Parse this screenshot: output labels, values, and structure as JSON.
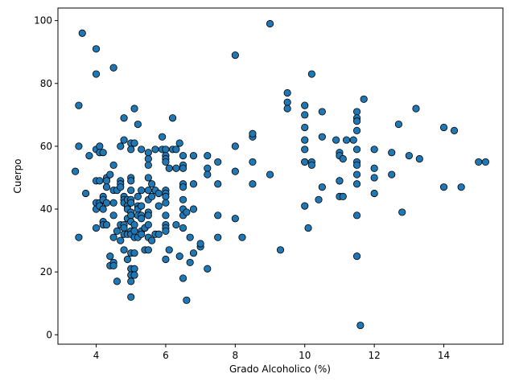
{
  "chart_data": {
    "type": "scatter",
    "title": "",
    "xlabel": "Grado Alcoholico (%)",
    "ylabel": "Cuerpo",
    "xlim": [
      2.9,
      15.7
    ],
    "ylim": [
      -3,
      104
    ],
    "xticks": [
      4,
      6,
      8,
      10,
      12,
      14
    ],
    "yticks": [
      0,
      20,
      40,
      60,
      80,
      100
    ],
    "grid": false,
    "legend": "none",
    "point_color": "#1f77b4",
    "edge_color": "#000000",
    "series": [
      {
        "x": [
          3.4,
          3.5,
          3.5,
          3.5,
          3.6,
          3.7,
          3.8,
          4.0,
          4.0,
          4.0,
          4.0,
          4.0,
          4.0,
          4.0,
          4.1,
          4.1,
          4.1,
          4.1,
          4.1,
          4.2,
          4.2,
          4.2,
          4.2,
          4.2,
          4.2,
          4.3,
          4.3,
          4.3,
          4.3,
          4.3,
          4.4,
          4.4,
          4.4,
          4.5,
          4.5,
          4.5,
          4.5,
          4.5,
          4.5,
          4.5,
          4.5,
          4.6,
          4.6,
          4.6,
          4.7,
          4.7,
          4.7,
          4.7,
          4.7,
          4.7,
          4.8,
          4.8,
          4.8,
          4.8,
          4.8,
          4.8,
          4.8,
          4.8,
          4.8,
          4.9,
          4.9,
          4.9,
          4.9,
          4.9,
          4.9,
          5.0,
          5.0,
          5.0,
          5.0,
          5.0,
          5.0,
          5.0,
          5.0,
          5.0,
          5.0,
          5.0,
          5.0,
          5.0,
          5.0,
          5.0,
          5.0,
          5.0,
          5.1,
          5.1,
          5.1,
          5.1,
          5.1,
          5.1,
          5.1,
          5.1,
          5.2,
          5.2,
          5.2,
          5.2,
          5.2,
          5.2,
          5.3,
          5.3,
          5.3,
          5.3,
          5.3,
          5.3,
          5.3,
          5.4,
          5.4,
          5.4,
          5.5,
          5.5,
          5.5,
          5.5,
          5.5,
          5.5,
          5.5,
          5.5,
          5.5,
          5.5,
          5.5,
          5.6,
          5.6,
          5.6,
          5.7,
          5.7,
          5.7,
          5.8,
          5.8,
          5.8,
          5.9,
          5.9,
          6.0,
          6.0,
          6.0,
          6.0,
          6.0,
          6.0,
          6.0,
          6.0,
          6.0,
          6.0,
          6.0,
          6.0,
          6.0,
          6.1,
          6.1,
          6.2,
          6.2,
          6.3,
          6.3,
          6.3,
          6.4,
          6.4,
          6.5,
          6.5,
          6.5,
          6.5,
          6.5,
          6.5,
          6.5,
          6.5,
          6.5,
          6.5,
          6.6,
          6.6,
          6.7,
          6.7,
          6.8,
          6.8,
          6.8,
          6.8,
          7.0,
          7.0,
          7.2,
          7.2,
          7.2,
          7.2,
          7.5,
          7.5,
          7.5,
          7.5,
          8.0,
          8.0,
          8.0,
          8.0,
          8.2,
          8.5,
          8.5,
          8.5,
          8.5,
          9.0,
          9.0,
          9.3,
          9.5,
          9.5,
          9.5,
          10.0,
          10.0,
          10.0,
          10.0,
          10.0,
          10.0,
          10.0,
          10.0,
          10.1,
          10.2,
          10.2,
          10.2,
          10.4,
          10.5,
          10.5,
          10.5,
          10.9,
          11.0,
          11.0,
          11.0,
          11.0,
          11.0,
          11.1,
          11.1,
          11.2,
          11.4,
          11.5,
          11.5,
          11.5,
          11.5,
          11.5,
          11.5,
          11.5,
          11.5,
          11.5,
          11.5,
          11.5,
          11.6,
          11.7,
          12.0,
          12.0,
          12.0,
          12.0,
          12.5,
          12.5,
          12.7,
          12.8,
          13.0,
          13.2,
          13.3,
          14.0,
          14.0,
          14.3,
          14.5,
          15.0,
          15.2
        ],
        "y": [
          52,
          31,
          60,
          73,
          96,
          45,
          57,
          91,
          83,
          59,
          49,
          42,
          40,
          34,
          60,
          58,
          49,
          42,
          41,
          58,
          44,
          43,
          40,
          36,
          35,
          50,
          49,
          47,
          42,
          35,
          51,
          25,
          22,
          85,
          54,
          46,
          42,
          38,
          31,
          23,
          22,
          17,
          33,
          46,
          60,
          49,
          48,
          47,
          35,
          30,
          69,
          62,
          44,
          43,
          42,
          35,
          34,
          32,
          27,
          41,
          40,
          37,
          32,
          24,
          43,
          61,
          59,
          50,
          49,
          46,
          43,
          42,
          39,
          38,
          36,
          33,
          32,
          26,
          21,
          19,
          17,
          12,
          72,
          61,
          35,
          33,
          31,
          26,
          21,
          19,
          67,
          44,
          41,
          40,
          38,
          31,
          59,
          46,
          41,
          38,
          37,
          33,
          32,
          34,
          34,
          27,
          58,
          56,
          54,
          50,
          46,
          43,
          39,
          38,
          35,
          31,
          27,
          48,
          44,
          30,
          59,
          46,
          32,
          45,
          41,
          32,
          63,
          59,
          59,
          57,
          56,
          55,
          46,
          45,
          44,
          42,
          38,
          35,
          34,
          33,
          24,
          53,
          27,
          69,
          59,
          59,
          53,
          35,
          25,
          61,
          57,
          54,
          53,
          48,
          47,
          43,
          40,
          38,
          34,
          18,
          11,
          39,
          23,
          31,
          26,
          48,
          57,
          40,
          28,
          29,
          21,
          57,
          53,
          51,
          48,
          55,
          38,
          31,
          89,
          60,
          52,
          37,
          31,
          63,
          64,
          55,
          48,
          99,
          51,
          27,
          74,
          77,
          72,
          55,
          73,
          70,
          66,
          62,
          59,
          55,
          41,
          34,
          83,
          55,
          54,
          43,
          47,
          71,
          63,
          62,
          44,
          49,
          49,
          58,
          57,
          56,
          44,
          62,
          62,
          71,
          69,
          68,
          65,
          59,
          55,
          54,
          51,
          48,
          38,
          25,
          3,
          75,
          59,
          53,
          50,
          45,
          58,
          51,
          67,
          39,
          57,
          72,
          56,
          66,
          47,
          65,
          47,
          55,
          55
        ]
      }
    ]
  }
}
